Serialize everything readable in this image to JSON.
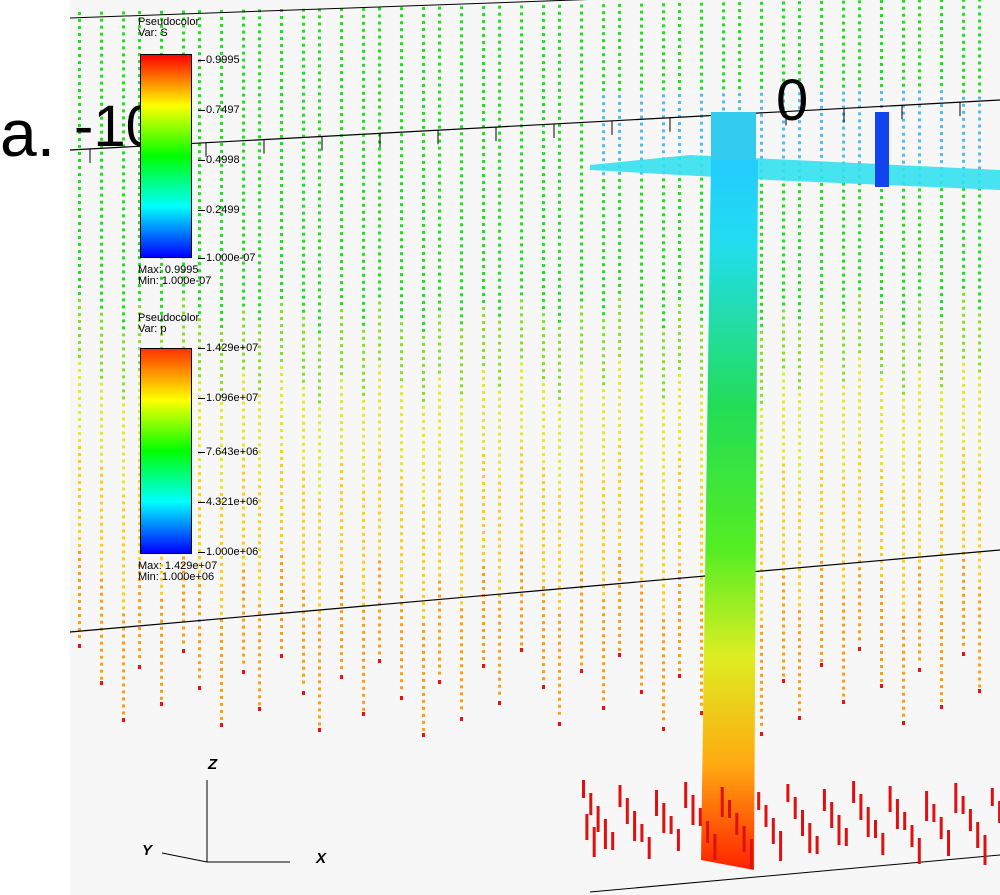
{
  "figure_label": "a.",
  "axis_labels": {
    "left": "-10",
    "center": "0"
  },
  "legend_saturation": {
    "title": "Pseudocolor",
    "var": "Var: S",
    "ticks": [
      "0.9995",
      "0.7497",
      "0.4998",
      "0.2499",
      "1.000e-07"
    ],
    "max": "Max: 0.9995",
    "min": "Min: 1.000e-07"
  },
  "legend_pressure": {
    "title": "Pseudocolor",
    "var": "Var: p",
    "ticks": [
      "1.429e+07",
      "1.096e+07",
      "7.643e+06",
      "4.321e+06",
      "1.000e+06"
    ],
    "max": "Max: 1.429e+07",
    "min": "Min: 1.000e+06"
  },
  "triad": {
    "z": "Z",
    "y": "Y",
    "x": "X"
  },
  "colors": {
    "colormap": [
      "#0000ff",
      "#00ffff",
      "#00ff00",
      "#ffff00",
      "#ff0000"
    ],
    "background": "#f7f7f7"
  }
}
